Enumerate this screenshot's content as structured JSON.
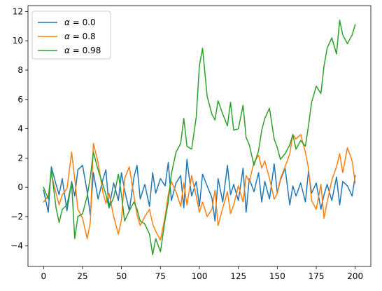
{
  "chart_data": {
    "type": "line",
    "title": "",
    "xlabel": "",
    "ylabel": "",
    "xlim": [
      -10,
      210
    ],
    "ylim": [
      -5.4,
      12.4
    ],
    "xticks": [
      0,
      25,
      50,
      75,
      100,
      125,
      150,
      175,
      200
    ],
    "yticks": [
      -4,
      -2,
      0,
      2,
      4,
      6,
      8,
      10,
      12
    ],
    "grid": false,
    "legend_position": "upper-left",
    "series": [
      {
        "name_prefix": "α",
        "name_value": "= 0.0",
        "color": "#1f77b4",
        "x": [
          0,
          3,
          5,
          8,
          10,
          12,
          15,
          18,
          20,
          22,
          25,
          28,
          30,
          32,
          35,
          38,
          40,
          42,
          45,
          48,
          50,
          52,
          55,
          58,
          60,
          62,
          65,
          68,
          70,
          72,
          75,
          78,
          80,
          82,
          85,
          88,
          90,
          92,
          95,
          98,
          100,
          102,
          105,
          108,
          110,
          112,
          115,
          118,
          120,
          122,
          125,
          128,
          130,
          132,
          135,
          138,
          140,
          142,
          145,
          148,
          150,
          152,
          155,
          158,
          160,
          162,
          165,
          168,
          170,
          172,
          175,
          178,
          180,
          182,
          185,
          188,
          190,
          192,
          195,
          198,
          200
        ],
        "y": [
          -0.2,
          -1.7,
          1.4,
          0.2,
          -0.5,
          0.6,
          -1.6,
          0.4,
          -0.6,
          1.2,
          1.5,
          -0.3,
          -1.9,
          1.0,
          -0.8,
          0.5,
          1.2,
          -1.4,
          0.3,
          -0.9,
          1.0,
          -0.2,
          -1.6,
          0.7,
          1.5,
          -0.8,
          0.2,
          -1.3,
          1.0,
          -0.4,
          0.6,
          0.1,
          1.7,
          -0.9,
          0.3,
          0.8,
          -1.4,
          1.9,
          -0.6,
          0.4,
          -1.3,
          0.9,
          0.1,
          -0.7,
          -2.3,
          0.6,
          -1.0,
          1.5,
          -0.5,
          0.2,
          -0.9,
          1.3,
          -1.7,
          0.6,
          -0.3,
          1.0,
          -1.0,
          0.4,
          -0.8,
          1.6,
          -0.4,
          0.5,
          1.3,
          -1.2,
          0.1,
          -0.6,
          0.3,
          -1.0,
          1.1,
          -0.4,
          0.3,
          -1.5,
          -0.5,
          0.2,
          -0.9,
          0.7,
          -1.2,
          0.4,
          0.1,
          -0.6,
          0.8
        ]
      },
      {
        "name_prefix": "α",
        "name_value": "= 0.8",
        "color": "#ff7f0e",
        "x": [
          0,
          3,
          5,
          8,
          10,
          12,
          15,
          18,
          20,
          22,
          25,
          28,
          30,
          32,
          35,
          38,
          40,
          42,
          45,
          48,
          50,
          52,
          55,
          58,
          60,
          62,
          65,
          68,
          70,
          72,
          75,
          78,
          80,
          82,
          85,
          88,
          90,
          92,
          95,
          98,
          100,
          102,
          105,
          108,
          110,
          112,
          115,
          118,
          120,
          122,
          125,
          128,
          130,
          132,
          135,
          138,
          140,
          142,
          145,
          148,
          150,
          152,
          155,
          158,
          160,
          162,
          165,
          168,
          170,
          172,
          175,
          178,
          180,
          182,
          185,
          188,
          190,
          192,
          195,
          198,
          200
        ],
        "y": [
          -1.0,
          -0.6,
          0.9,
          -0.4,
          -1.2,
          -0.5,
          -0.1,
          2.4,
          0.6,
          -1.5,
          -2.1,
          -3.5,
          -2.4,
          3.0,
          1.7,
          -0.3,
          -1.1,
          -0.4,
          -2.0,
          -3.2,
          -2.2,
          0.6,
          1.4,
          -0.6,
          -1.9,
          -2.6,
          -2.0,
          -1.5,
          -2.5,
          -3.0,
          -3.6,
          -2.0,
          -0.5,
          0.4,
          -0.3,
          -1.3,
          0.3,
          -1.2,
          0.8,
          -0.6,
          -1.7,
          -1.0,
          -2.0,
          -1.5,
          -0.2,
          -2.6,
          -1.4,
          -0.3,
          -1.8,
          -1.2,
          0.1,
          -1.0,
          0.8,
          0.4,
          1.7,
          2.2,
          1.3,
          1.8,
          0.6,
          -0.8,
          -0.4,
          0.6,
          1.4,
          2.3,
          3.6,
          3.3,
          3.6,
          2.4,
          1.3,
          -0.9,
          -1.5,
          0.2,
          -2.1,
          -1.0,
          0.5,
          1.4,
          2.3,
          1.0,
          2.7,
          1.8,
          0.3
        ]
      },
      {
        "name_prefix": "α",
        "name_value": "= 0.98",
        "color": "#2ca02c",
        "x": [
          0,
          3,
          5,
          8,
          10,
          12,
          15,
          18,
          20,
          22,
          25,
          28,
          30,
          32,
          35,
          38,
          40,
          42,
          45,
          48,
          50,
          52,
          55,
          58,
          60,
          62,
          65,
          68,
          70,
          72,
          75,
          78,
          80,
          82,
          85,
          88,
          90,
          92,
          95,
          98,
          100,
          102,
          105,
          108,
          110,
          112,
          115,
          118,
          120,
          122,
          125,
          128,
          130,
          132,
          135,
          138,
          140,
          142,
          145,
          148,
          150,
          152,
          155,
          158,
          160,
          162,
          165,
          168,
          170,
          172,
          175,
          178,
          180,
          182,
          185,
          188,
          190,
          192,
          195,
          198,
          200
        ],
        "y": [
          0.0,
          -0.8,
          1.2,
          -1.4,
          -2.4,
          -1.5,
          -1.2,
          0.3,
          -3.5,
          -2.0,
          -1.8,
          -0.6,
          0.7,
          2.4,
          1.2,
          0.2,
          -0.5,
          -1.4,
          -0.7,
          0.9,
          -0.5,
          -2.3,
          -1.6,
          -1.0,
          -1.5,
          -2.3,
          -2.5,
          -3.2,
          -4.6,
          -3.5,
          -4.4,
          -2.2,
          -1.0,
          0.9,
          2.4,
          3.0,
          4.7,
          2.8,
          2.6,
          4.8,
          8.3,
          9.5,
          6.2,
          5.0,
          4.6,
          5.9,
          5.0,
          4.2,
          5.8,
          3.9,
          4.0,
          5.6,
          3.4,
          2.9,
          1.5,
          2.5,
          3.9,
          4.7,
          5.4,
          3.3,
          2.7,
          1.9,
          2.3,
          2.9,
          3.6,
          2.6,
          3.2,
          2.8,
          4.2,
          5.8,
          6.9,
          6.4,
          8.3,
          9.5,
          10.2,
          9.1,
          11.4,
          10.4,
          9.8,
          10.4,
          11.1
        ]
      }
    ]
  }
}
